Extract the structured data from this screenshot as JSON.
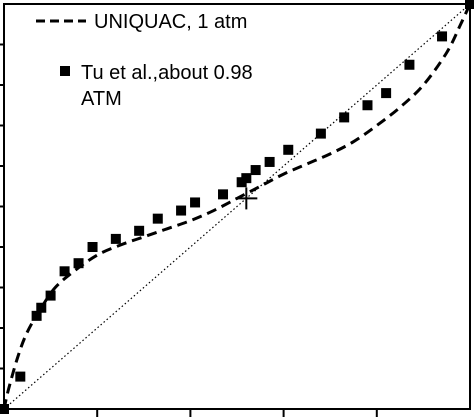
{
  "chart_data": {
    "type": "scatter",
    "xlim": [
      0,
      1
    ],
    "ylim": [
      0,
      1
    ],
    "grid": false,
    "legend_position": "top-left",
    "legend": {
      "line_label": "UNIQUAC, 1 atm",
      "marker_label_line1": "Tu et al.,about 0.98",
      "marker_label_line2": "ATM"
    },
    "series": [
      {
        "name": "UNIQUAC, 1 atm",
        "style": "dashed-line",
        "color": "#000000",
        "x": [
          0.0,
          0.01,
          0.03,
          0.05,
          0.08,
          0.11,
          0.15,
          0.2,
          0.25,
          0.3,
          0.35,
          0.4,
          0.45,
          0.5,
          0.55,
          0.6,
          0.65,
          0.7,
          0.75,
          0.8,
          0.85,
          0.9,
          0.95,
          0.98,
          1.0
        ],
        "y": [
          0.0,
          0.05,
          0.13,
          0.19,
          0.25,
          0.3,
          0.34,
          0.38,
          0.405,
          0.425,
          0.445,
          0.465,
          0.49,
          0.52,
          0.55,
          0.58,
          0.605,
          0.63,
          0.66,
          0.7,
          0.745,
          0.8,
          0.88,
          0.95,
          1.0
        ]
      },
      {
        "name": "Tu et al.,about 0.98 ATM",
        "style": "square-marker",
        "color": "#000000",
        "x": [
          0.0,
          0.035,
          0.07,
          0.08,
          0.1,
          0.13,
          0.16,
          0.19,
          0.24,
          0.29,
          0.33,
          0.38,
          0.41,
          0.47,
          0.51,
          0.52,
          0.54,
          0.57,
          0.61,
          0.68,
          0.73,
          0.78,
          0.82,
          0.87,
          0.94,
          1.0
        ],
        "y": [
          0.0,
          0.08,
          0.23,
          0.25,
          0.28,
          0.34,
          0.36,
          0.4,
          0.42,
          0.44,
          0.47,
          0.49,
          0.51,
          0.53,
          0.56,
          0.57,
          0.59,
          0.61,
          0.64,
          0.68,
          0.72,
          0.75,
          0.78,
          0.85,
          0.92,
          1.0
        ]
      },
      {
        "name": "",
        "style": "dotted-diagonal",
        "color": "#000000",
        "x": [
          0,
          1
        ],
        "y": [
          0,
          1
        ]
      }
    ],
    "azeotrope": {
      "x": 0.52,
      "y": 0.52
    }
  }
}
